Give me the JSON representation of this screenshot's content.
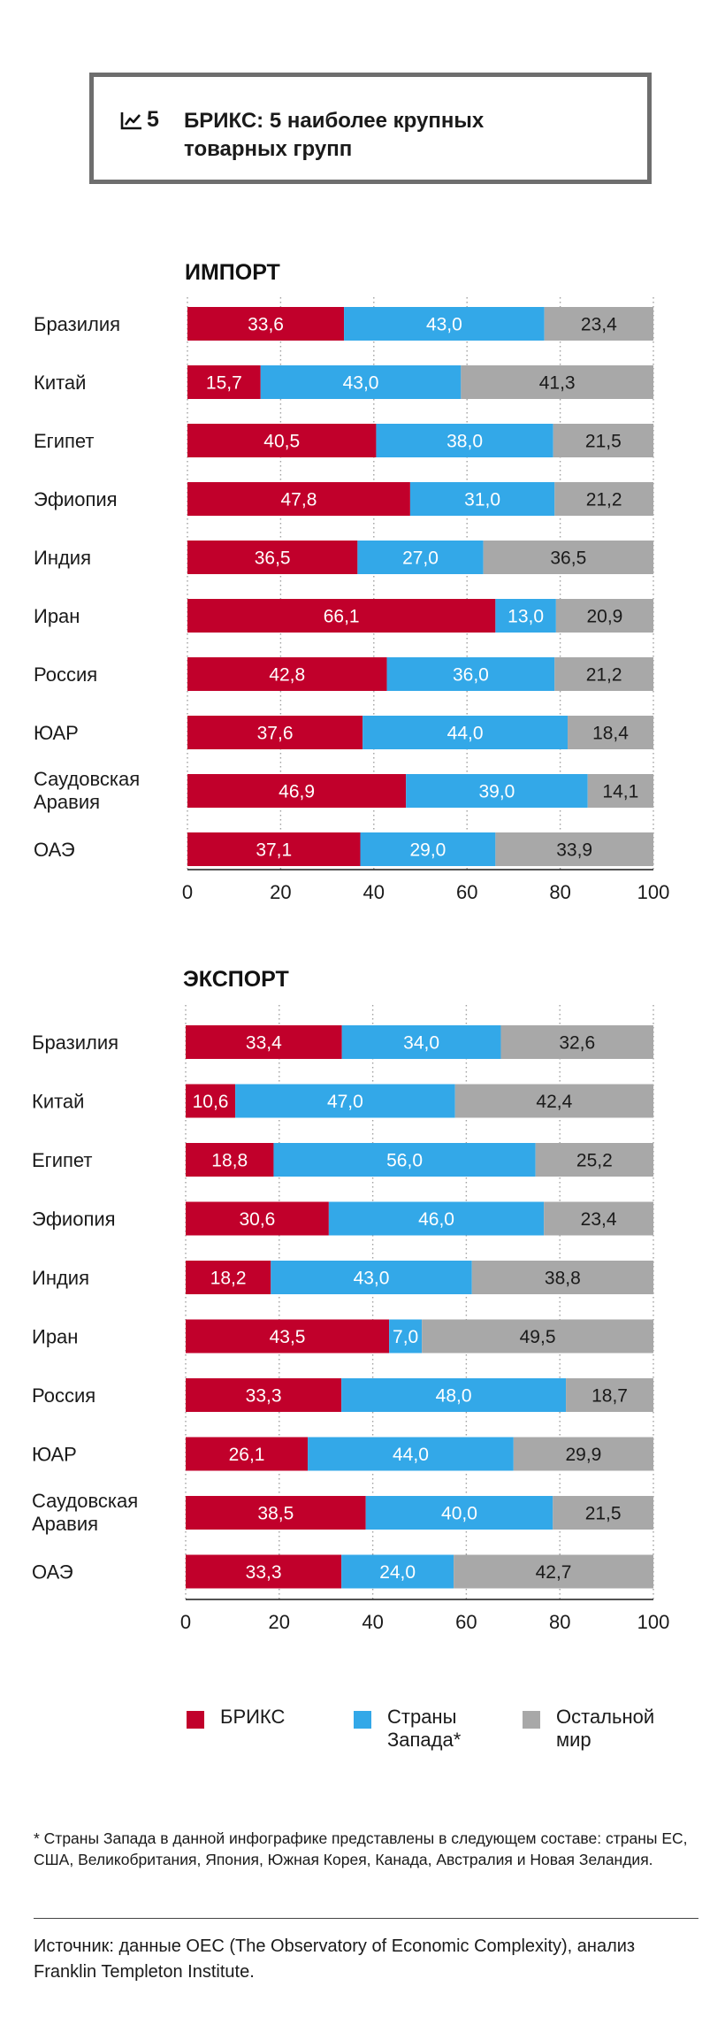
{
  "figure": {
    "number": "5",
    "title": "БРИКС: 5 наиболее крупных товарных групп",
    "icon": "chart-trend-icon"
  },
  "colors": {
    "brics": "#c1002b",
    "west": "#33a8e8",
    "rest": "#a8a8a8",
    "grid": "#a0a0a0"
  },
  "chart_data": [
    {
      "type": "bar",
      "orientation": "horizontal-stacked",
      "title": "ИМПОРТ",
      "categories": [
        "Бразилия",
        "Китай",
        "Египет",
        "Эфиопия",
        "Индия",
        "Иран",
        "Россия",
        "ЮАР",
        "Саудовская Аравия",
        "ОАЭ"
      ],
      "series": [
        {
          "name": "БРИКС",
          "values": [
            33.6,
            15.7,
            40.5,
            47.8,
            36.5,
            66.1,
            42.8,
            37.6,
            46.9,
            37.1
          ],
          "labels": [
            "33,6",
            "15,7",
            "40,5",
            "47,8",
            "36,5",
            "66,1",
            "42,8",
            "37,6",
            "46,9",
            "37,1"
          ]
        },
        {
          "name": "Страны Запада*",
          "values": [
            43.0,
            43.0,
            38.0,
            31.0,
            27.0,
            13.0,
            36.0,
            44.0,
            39.0,
            29.0
          ],
          "labels": [
            "43,0",
            "43,0",
            "38,0",
            "31,0",
            "27,0",
            "13,0",
            "36,0",
            "44,0",
            "39,0",
            "29,0"
          ]
        },
        {
          "name": "Остальной мир",
          "values": [
            23.4,
            41.3,
            21.5,
            21.2,
            36.5,
            20.9,
            21.2,
            18.4,
            14.1,
            33.9
          ],
          "labels": [
            "23,4",
            "41,3",
            "21,5",
            "21,2",
            "36,5",
            "20,9",
            "21,2",
            "18,4",
            "14,1",
            "33,9"
          ]
        }
      ],
      "xlim": [
        0,
        100
      ],
      "xticks": [
        "0",
        "20",
        "40",
        "60",
        "80",
        "100"
      ],
      "grid": true
    },
    {
      "type": "bar",
      "orientation": "horizontal-stacked",
      "title": "ЭКСПОРТ",
      "categories": [
        "Бразилия",
        "Китай",
        "Египет",
        "Эфиопия",
        "Индия",
        "Иран",
        "Россия",
        "ЮАР",
        "Саудовская Аравия",
        "ОАЭ"
      ],
      "series": [
        {
          "name": "БРИКС",
          "values": [
            33.4,
            10.6,
            18.8,
            30.6,
            18.2,
            43.5,
            33.3,
            26.1,
            38.5,
            33.3
          ],
          "labels": [
            "33,4",
            "10,6",
            "18,8",
            "30,6",
            "18,2",
            "43,5",
            "33,3",
            "26,1",
            "38,5",
            "33,3"
          ]
        },
        {
          "name": "Страны Запада*",
          "values": [
            34.0,
            47.0,
            56.0,
            46.0,
            43.0,
            7.0,
            48.0,
            44.0,
            40.0,
            24.0
          ],
          "labels": [
            "34,0",
            "47,0",
            "56,0",
            "46,0",
            "43,0",
            "7,0",
            "48,0",
            "44,0",
            "40,0",
            "24,0"
          ]
        },
        {
          "name": "Остальной мир",
          "values": [
            32.6,
            42.4,
            25.2,
            23.4,
            38.8,
            49.5,
            18.7,
            29.9,
            21.5,
            42.7
          ],
          "labels": [
            "32,6",
            "42,4",
            "25,2",
            "23,4",
            "38,8",
            "49,5",
            "18,7",
            "29,9",
            "21,5",
            "42,7"
          ]
        }
      ],
      "xlim": [
        0,
        100
      ],
      "xticks": [
        "0",
        "20",
        "40",
        "60",
        "80",
        "100"
      ],
      "grid": true
    }
  ],
  "legend": [
    {
      "label": "БРИКС",
      "color": "#c1002b"
    },
    {
      "label": "Страны Запада*",
      "color": "#33a8e8"
    },
    {
      "label": "Остальной мир",
      "color": "#a8a8a8"
    }
  ],
  "footnote": "* Страны Запада в данной инфографике представлены в следующем составе: страны ЕС, США, Великобритания, Япония, Южная Корея, Канада, Австралия и Новая Зеландия.",
  "source": "Источник: данные OEC (The Observatory of Economic Complexity), анализ Franklin Templeton Institute."
}
